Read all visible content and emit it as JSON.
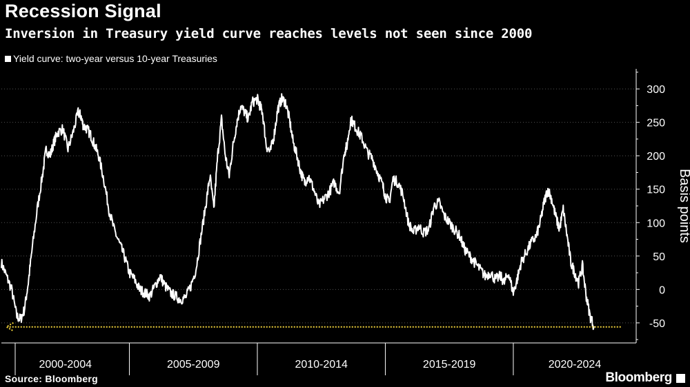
{
  "header": {
    "title": "Recession Signal",
    "subtitle": "Inversion in Treasury yield curve reaches levels not seen since 2000"
  },
  "footer": {
    "source": "Source: Bloomberg",
    "brand": "Bloomberg"
  },
  "colors": {
    "background": "#000000",
    "series": "#ffffff",
    "reference_line": "#f2d33c",
    "grid": "#555555"
  },
  "chart_data": {
    "type": "line",
    "title": "Recession Signal",
    "subtitle": "Inversion in Treasury yield curve reaches levels not seen since 2000",
    "ylabel": "Basis points",
    "xlabel": "",
    "ylim": [
      -80,
      330
    ],
    "xlim": [
      2000.0,
      2024.8
    ],
    "y_ticks": [
      300,
      250,
      200,
      150,
      100,
      50,
      0,
      -50
    ],
    "x_tick_labels": [
      "2000-2004",
      "2005-2009",
      "2010-2014",
      "2015-2019",
      "2020-2024"
    ],
    "x_tick_boundaries": [
      2000.0,
      2005.0,
      2010.0,
      2015.0,
      2020.0
    ],
    "legend": {
      "position": "top-left",
      "entries": [
        "Yield curve: two-year versus 10-year Treasuries"
      ]
    },
    "grid": {
      "horizontal": true,
      "vertical": false
    },
    "series": [
      {
        "name": "Yield curve: two-year versus 10-year Treasuries",
        "x": [
          2000.0,
          2000.2,
          2000.4,
          2000.6,
          2000.75,
          2000.9,
          2001.05,
          2001.2,
          2001.4,
          2001.6,
          2001.75,
          2001.9,
          2002.05,
          2002.2,
          2002.4,
          2002.6,
          2002.8,
          2003.0,
          2003.1,
          2003.2,
          2003.35,
          2003.5,
          2003.65,
          2003.8,
          2004.0,
          2004.2,
          2004.4,
          2004.6,
          2004.8,
          2005.0,
          2005.2,
          2005.4,
          2005.6,
          2005.8,
          2006.0,
          2006.2,
          2006.4,
          2006.6,
          2006.8,
          2007.0,
          2007.2,
          2007.4,
          2007.6,
          2007.8,
          2008.0,
          2008.15,
          2008.3,
          2008.45,
          2008.6,
          2008.75,
          2008.9,
          2009.05,
          2009.2,
          2009.35,
          2009.5,
          2009.65,
          2009.8,
          2010.0,
          2010.1,
          2010.2,
          2010.35,
          2010.5,
          2010.65,
          2010.8,
          2010.95,
          2011.1,
          2011.25,
          2011.4,
          2011.55,
          2011.7,
          2011.85,
          2012.0,
          2012.2,
          2012.4,
          2012.6,
          2012.8,
          2013.0,
          2013.2,
          2013.4,
          2013.5,
          2013.65,
          2013.8,
          2013.95,
          2014.1,
          2014.3,
          2014.5,
          2014.7,
          2014.9,
          2015.0,
          2015.15,
          2015.3,
          2015.5,
          2015.7,
          2015.9,
          2016.1,
          2016.3,
          2016.5,
          2016.7,
          2016.9,
          2017.1,
          2017.3,
          2017.5,
          2017.7,
          2017.9,
          2018.1,
          2018.3,
          2018.5,
          2018.7,
          2018.9,
          2019.1,
          2019.3,
          2019.5,
          2019.65,
          2019.8,
          2020.0,
          2020.15,
          2020.3,
          2020.5,
          2020.7,
          2020.9,
          2021.05,
          2021.2,
          2021.35,
          2021.5,
          2021.65,
          2021.8,
          2021.95,
          2022.1,
          2022.25,
          2022.4,
          2022.55,
          2022.7,
          2022.85,
          2023.0,
          2023.15
        ],
        "values": [
          40,
          20,
          0,
          -40,
          -45,
          -30,
          10,
          60,
          120,
          170,
          210,
          200,
          220,
          235,
          240,
          210,
          235,
          265,
          260,
          245,
          240,
          230,
          215,
          200,
          165,
          120,
          90,
          70,
          50,
          25,
          15,
          0,
          -5,
          -10,
          5,
          20,
          5,
          -5,
          -10,
          -15,
          -12,
          5,
          30,
          80,
          130,
          170,
          120,
          200,
          255,
          200,
          170,
          215,
          250,
          275,
          265,
          255,
          280,
          285,
          275,
          265,
          215,
          205,
          230,
          270,
          285,
          280,
          255,
          220,
          200,
          175,
          160,
          170,
          150,
          125,
          135,
          145,
          160,
          145,
          205,
          215,
          255,
          245,
          235,
          225,
          205,
          195,
          175,
          155,
          140,
          130,
          165,
          160,
          140,
          100,
          85,
          95,
          85,
          90,
          125,
          130,
          110,
          100,
          90,
          80,
          60,
          50,
          40,
          30,
          20,
          25,
          15,
          20,
          10,
          25,
          -5,
          15,
          40,
          55,
          70,
          80,
          100,
          130,
          150,
          135,
          110,
          90,
          120,
          80,
          40,
          25,
          10,
          35,
          -10,
          -40,
          -55
        ]
      }
    ],
    "annotations": [
      {
        "type": "horizontal_arrow",
        "y": -56,
        "x_start": 2024.2,
        "x_end": 2000.2,
        "color": "#f2d33c",
        "style": "dotted"
      }
    ]
  }
}
